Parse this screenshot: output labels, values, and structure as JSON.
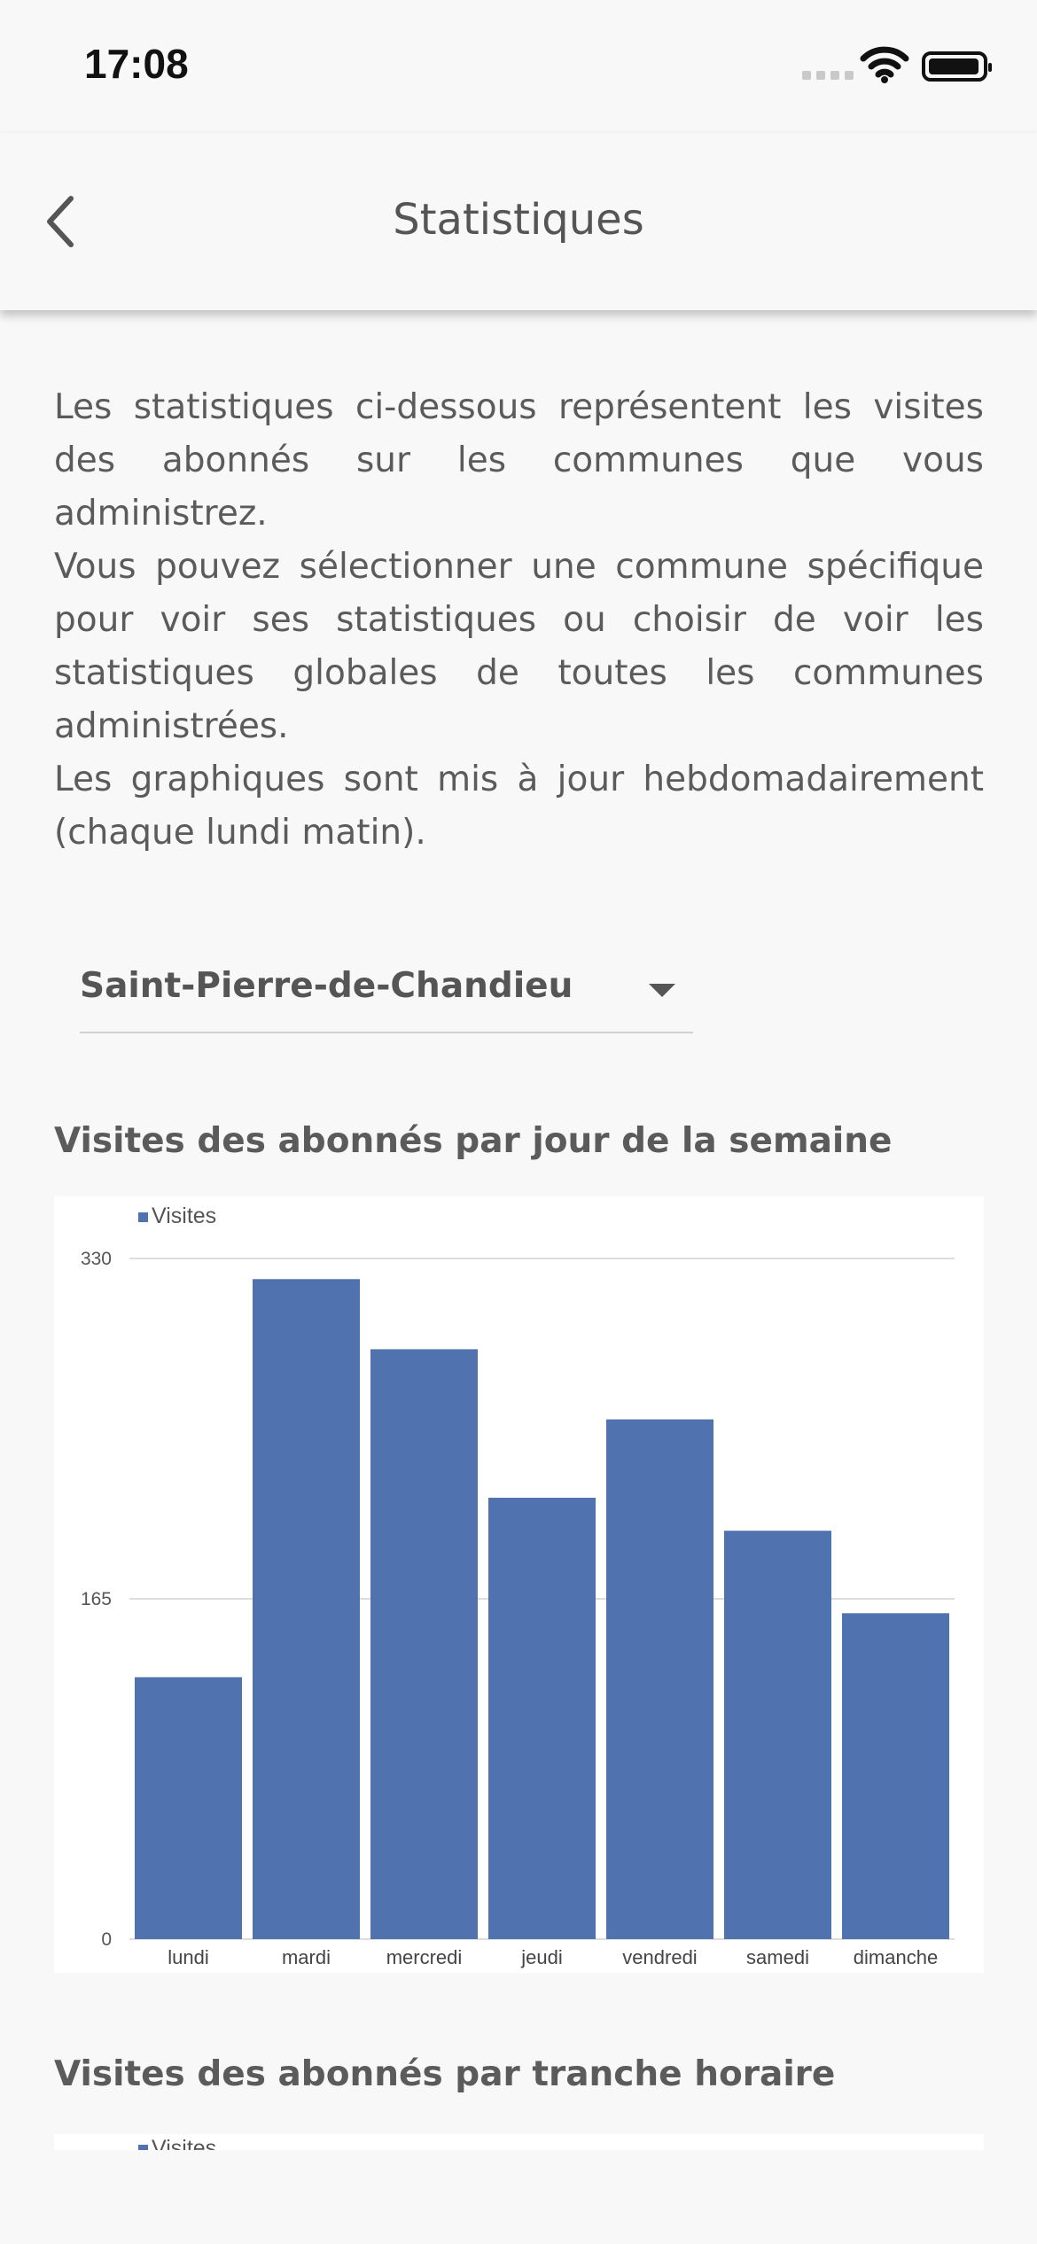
{
  "status_bar": {
    "time": "17:08"
  },
  "header": {
    "title": "Statistiques"
  },
  "intro": {
    "paragraphs": [
      "Les statistiques ci-dessous représentent les visites des abonnés sur les communes que vous administrez.",
      "Vous pouvez sélectionner une commune spécifique pour voir ses statistiques ou choisir de voir les statistiques globales de toutes les communes administrées.",
      "Les graphiques sont mis à jour hebdomadairement (chaque lundi matin)."
    ]
  },
  "commune_select": {
    "value": "Saint-Pierre-de-Chandieu"
  },
  "charts": {
    "weekly_title": "Visites des abonnés par jour de la semaine",
    "hourly_title": "Visites des abonnés par tranche horaire"
  },
  "chart_data": [
    {
      "type": "bar",
      "title": "Visites des abonnés par jour de la semaine",
      "categories": [
        "lundi",
        "mardi",
        "mercredi",
        "jeudi",
        "vendredi",
        "samedi",
        "dimanche"
      ],
      "series": [
        {
          "name": "Visites",
          "values": [
            127,
            320,
            286,
            214,
            252,
            198,
            158
          ],
          "color": "#5072af"
        }
      ],
      "ylim": [
        0,
        330
      ],
      "yticks": [
        "0",
        "165",
        "330"
      ],
      "grid": true,
      "legend": "top-left"
    },
    {
      "type": "bar",
      "title": "Visites des abonnés par tranche horaire",
      "series": [
        {
          "name": "Visites",
          "color": "#5072af"
        }
      ],
      "legend": "top-left"
    }
  ],
  "colors": {
    "bar": "#5072af",
    "gridline": "#dddddd",
    "text": "#555555"
  }
}
